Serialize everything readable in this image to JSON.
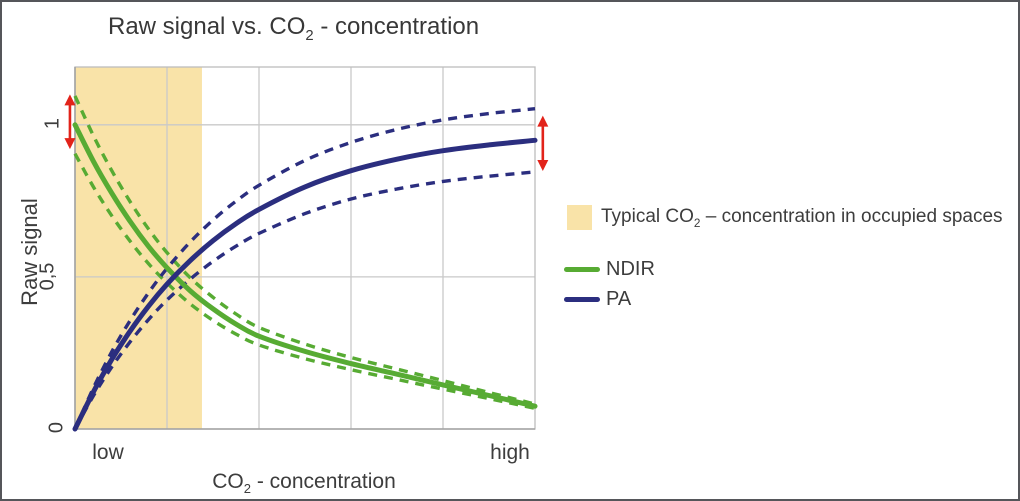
{
  "title": {
    "prefix": "Raw signal vs. CO",
    "sub": "2",
    "suffix": " - concentration"
  },
  "y_axis": {
    "label": "Raw signal",
    "ticks": [
      "1",
      "0,5",
      "0"
    ]
  },
  "x_axis": {
    "label_prefix": "CO",
    "label_sub": "2",
    "label_suffix": " - concentration",
    "ticks": [
      "low",
      "high"
    ]
  },
  "legend": {
    "region_item": {
      "prefix": "Typical CO",
      "sub": "2",
      "suffix": " – concentration in occupied spaces",
      "swatch_color": "#f9e3a8"
    },
    "series_items": [
      {
        "label": "NDIR",
        "color": "#57ab33"
      },
      {
        "label": "PA",
        "color": "#2b2e7f"
      }
    ]
  },
  "chart_data": {
    "type": "line",
    "title": "Raw signal vs. CO2 - concentration",
    "xlabel": "CO2 - concentration",
    "ylabel": "Raw signal",
    "x_tick_labels": [
      "low",
      "high"
    ],
    "y_ticks": [
      {
        "value": 0,
        "label": "0"
      },
      {
        "value": 0.5,
        "label": "0,5"
      },
      {
        "value": 1,
        "label": "1"
      }
    ],
    "ylim": [
      0,
      1.19
    ],
    "grid": {
      "vertical_fracs": [
        0.2,
        0.4,
        0.6,
        0.8
      ],
      "horizontal_values": [
        0.5,
        1.0
      ],
      "color": "#c9c9c9",
      "border_color": "#bdbdbd",
      "axis_color": "#a3a3a3"
    },
    "shaded_region": {
      "x_frac_range": [
        0,
        0.276
      ],
      "color": "#f9e3a8",
      "label": "Typical CO2 – concentration in occupied spaces"
    },
    "x": [
      0,
      0.04,
      0.08,
      0.12,
      0.16,
      0.2,
      0.25,
      0.3,
      0.35,
      0.4,
      0.5,
      0.6,
      0.7,
      0.8,
      0.9,
      1.0
    ],
    "series": [
      {
        "name": "NDIR",
        "style": "solid",
        "color": "#57ab33",
        "width": 5,
        "y": [
          1.0,
          0.88,
          0.775,
          0.682,
          0.6,
          0.53,
          0.455,
          0.395,
          0.345,
          0.305,
          0.255,
          0.215,
          0.18,
          0.145,
          0.11,
          0.075
        ]
      },
      {
        "name": "NDIR-upper-bound",
        "style": "dashed",
        "color": "#57ab33",
        "width": 3.4,
        "y": [
          1.095,
          0.964,
          0.849,
          0.747,
          0.657,
          0.58,
          0.498,
          0.433,
          0.378,
          0.334,
          0.279,
          0.235,
          0.197,
          0.159,
          0.12,
          0.082
        ]
      },
      {
        "name": "NDIR-lower-bound",
        "style": "dashed",
        "color": "#57ab33",
        "width": 3.4,
        "y": [
          0.905,
          0.796,
          0.701,
          0.617,
          0.543,
          0.48,
          0.412,
          0.357,
          0.312,
          0.276,
          0.231,
          0.195,
          0.163,
          0.131,
          0.1,
          0.068
        ]
      },
      {
        "name": "PA",
        "style": "solid",
        "color": "#2b2e7f",
        "width": 5,
        "y": [
          0,
          0.122,
          0.229,
          0.322,
          0.404,
          0.476,
          0.553,
          0.619,
          0.675,
          0.722,
          0.796,
          0.849,
          0.887,
          0.915,
          0.934,
          0.949
        ]
      },
      {
        "name": "PA-upper-bound",
        "style": "dashed",
        "color": "#2b2e7f",
        "width": 3.4,
        "y": [
          0,
          0.135,
          0.254,
          0.357,
          0.448,
          0.528,
          0.614,
          0.687,
          0.749,
          0.801,
          0.883,
          0.942,
          0.985,
          1.016,
          1.037,
          1.053
        ]
      },
      {
        "name": "PA-lower-bound",
        "style": "dashed",
        "color": "#2b2e7f",
        "width": 3.4,
        "y": [
          0,
          0.109,
          0.204,
          0.287,
          0.36,
          0.424,
          0.492,
          0.551,
          0.601,
          0.643,
          0.708,
          0.756,
          0.789,
          0.814,
          0.831,
          0.845
        ]
      }
    ],
    "annotations": [
      {
        "type": "double-arrow",
        "name": "ndir-signal-spread-arrow",
        "color": "#e2231a",
        "x_frac": -0.011,
        "value_from": 0.92,
        "value_to": 1.1
      },
      {
        "type": "double-arrow",
        "name": "pa-signal-spread-arrow",
        "color": "#e2231a",
        "x_frac": 1.017,
        "value_from": 0.848,
        "value_to": 1.03
      }
    ]
  }
}
